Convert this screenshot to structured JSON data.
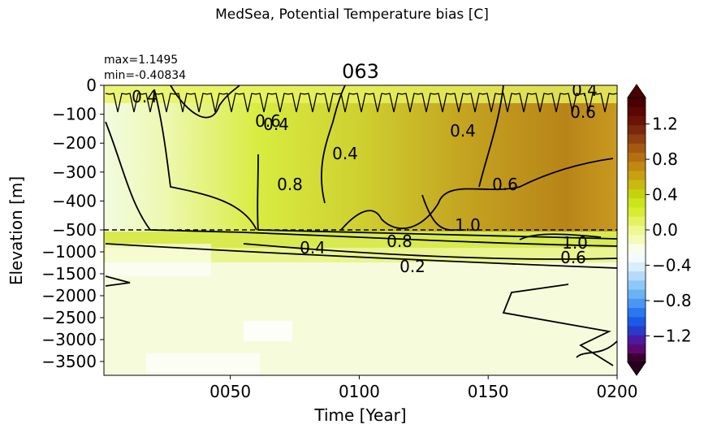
{
  "figure": {
    "suptitle": "MedSea, Potential Temperature bias [C]",
    "stats": {
      "max": "max=1.1495",
      "min": "min=-0.40834"
    }
  },
  "chart_data": {
    "type": "heatmap",
    "title": "063",
    "xlabel": "Time [Year]",
    "ylabel": "Elevation [m]",
    "xlim": [
      1,
      200
    ],
    "x_ticks": [
      "0050",
      "0100",
      "0150",
      "0200"
    ],
    "x_tick_values": [
      50,
      100,
      150,
      200
    ],
    "y_ticks_upper": [
      "0",
      "−100",
      "−200",
      "−300",
      "−400",
      "−500"
    ],
    "y_tick_values_upper": [
      0,
      -100,
      -200,
      -300,
      -400,
      -500
    ],
    "y_ticks_lower": [
      "−1000",
      "−1500",
      "−2000",
      "−2500",
      "−3000",
      "−3500"
    ],
    "y_tick_values_lower": [
      -1000,
      -1500,
      -2000,
      -2500,
      -3000,
      -3500
    ],
    "depth_break": -500,
    "colorbar": {
      "ticks": [
        "1.2",
        "0.8",
        "0.4",
        "0.0",
        "−0.4",
        "−0.8",
        "−1.2"
      ],
      "tick_values": [
        1.2,
        0.8,
        0.4,
        0.0,
        -0.4,
        -0.8,
        -1.2
      ],
      "range": [
        -1.5,
        1.5
      ],
      "extend": "both",
      "colors": [
        "#3a0030",
        "#5a0a6e",
        "#4a1aa0",
        "#2a3ac8",
        "#1a5ae6",
        "#2a78f0",
        "#4a96f4",
        "#6ab2f6",
        "#8ec8f8",
        "#b4dcfa",
        "#d8eefc",
        "#f2fbfe",
        "#fbfde8",
        "#f4fab8",
        "#eef890",
        "#e4f262",
        "#d8ec30",
        "#cce41a",
        "#c4d210",
        "#c8ba10",
        "#c8a010",
        "#c08810",
        "#b47010",
        "#a45810",
        "#904010",
        "#7a2a0a",
        "#6a1406",
        "#5a0804",
        "#4a0000"
      ]
    },
    "contour_labels_top": [
      "0.4",
      "0.6",
      "0.4",
      "0.8",
      "0.6",
      "1.0",
      "0.6",
      "0.4",
      "0.4",
      "0.4"
    ],
    "contour_labels_lower": [
      "0.8",
      "1.0",
      "0.4",
      "0.2",
      "0.6"
    ]
  }
}
